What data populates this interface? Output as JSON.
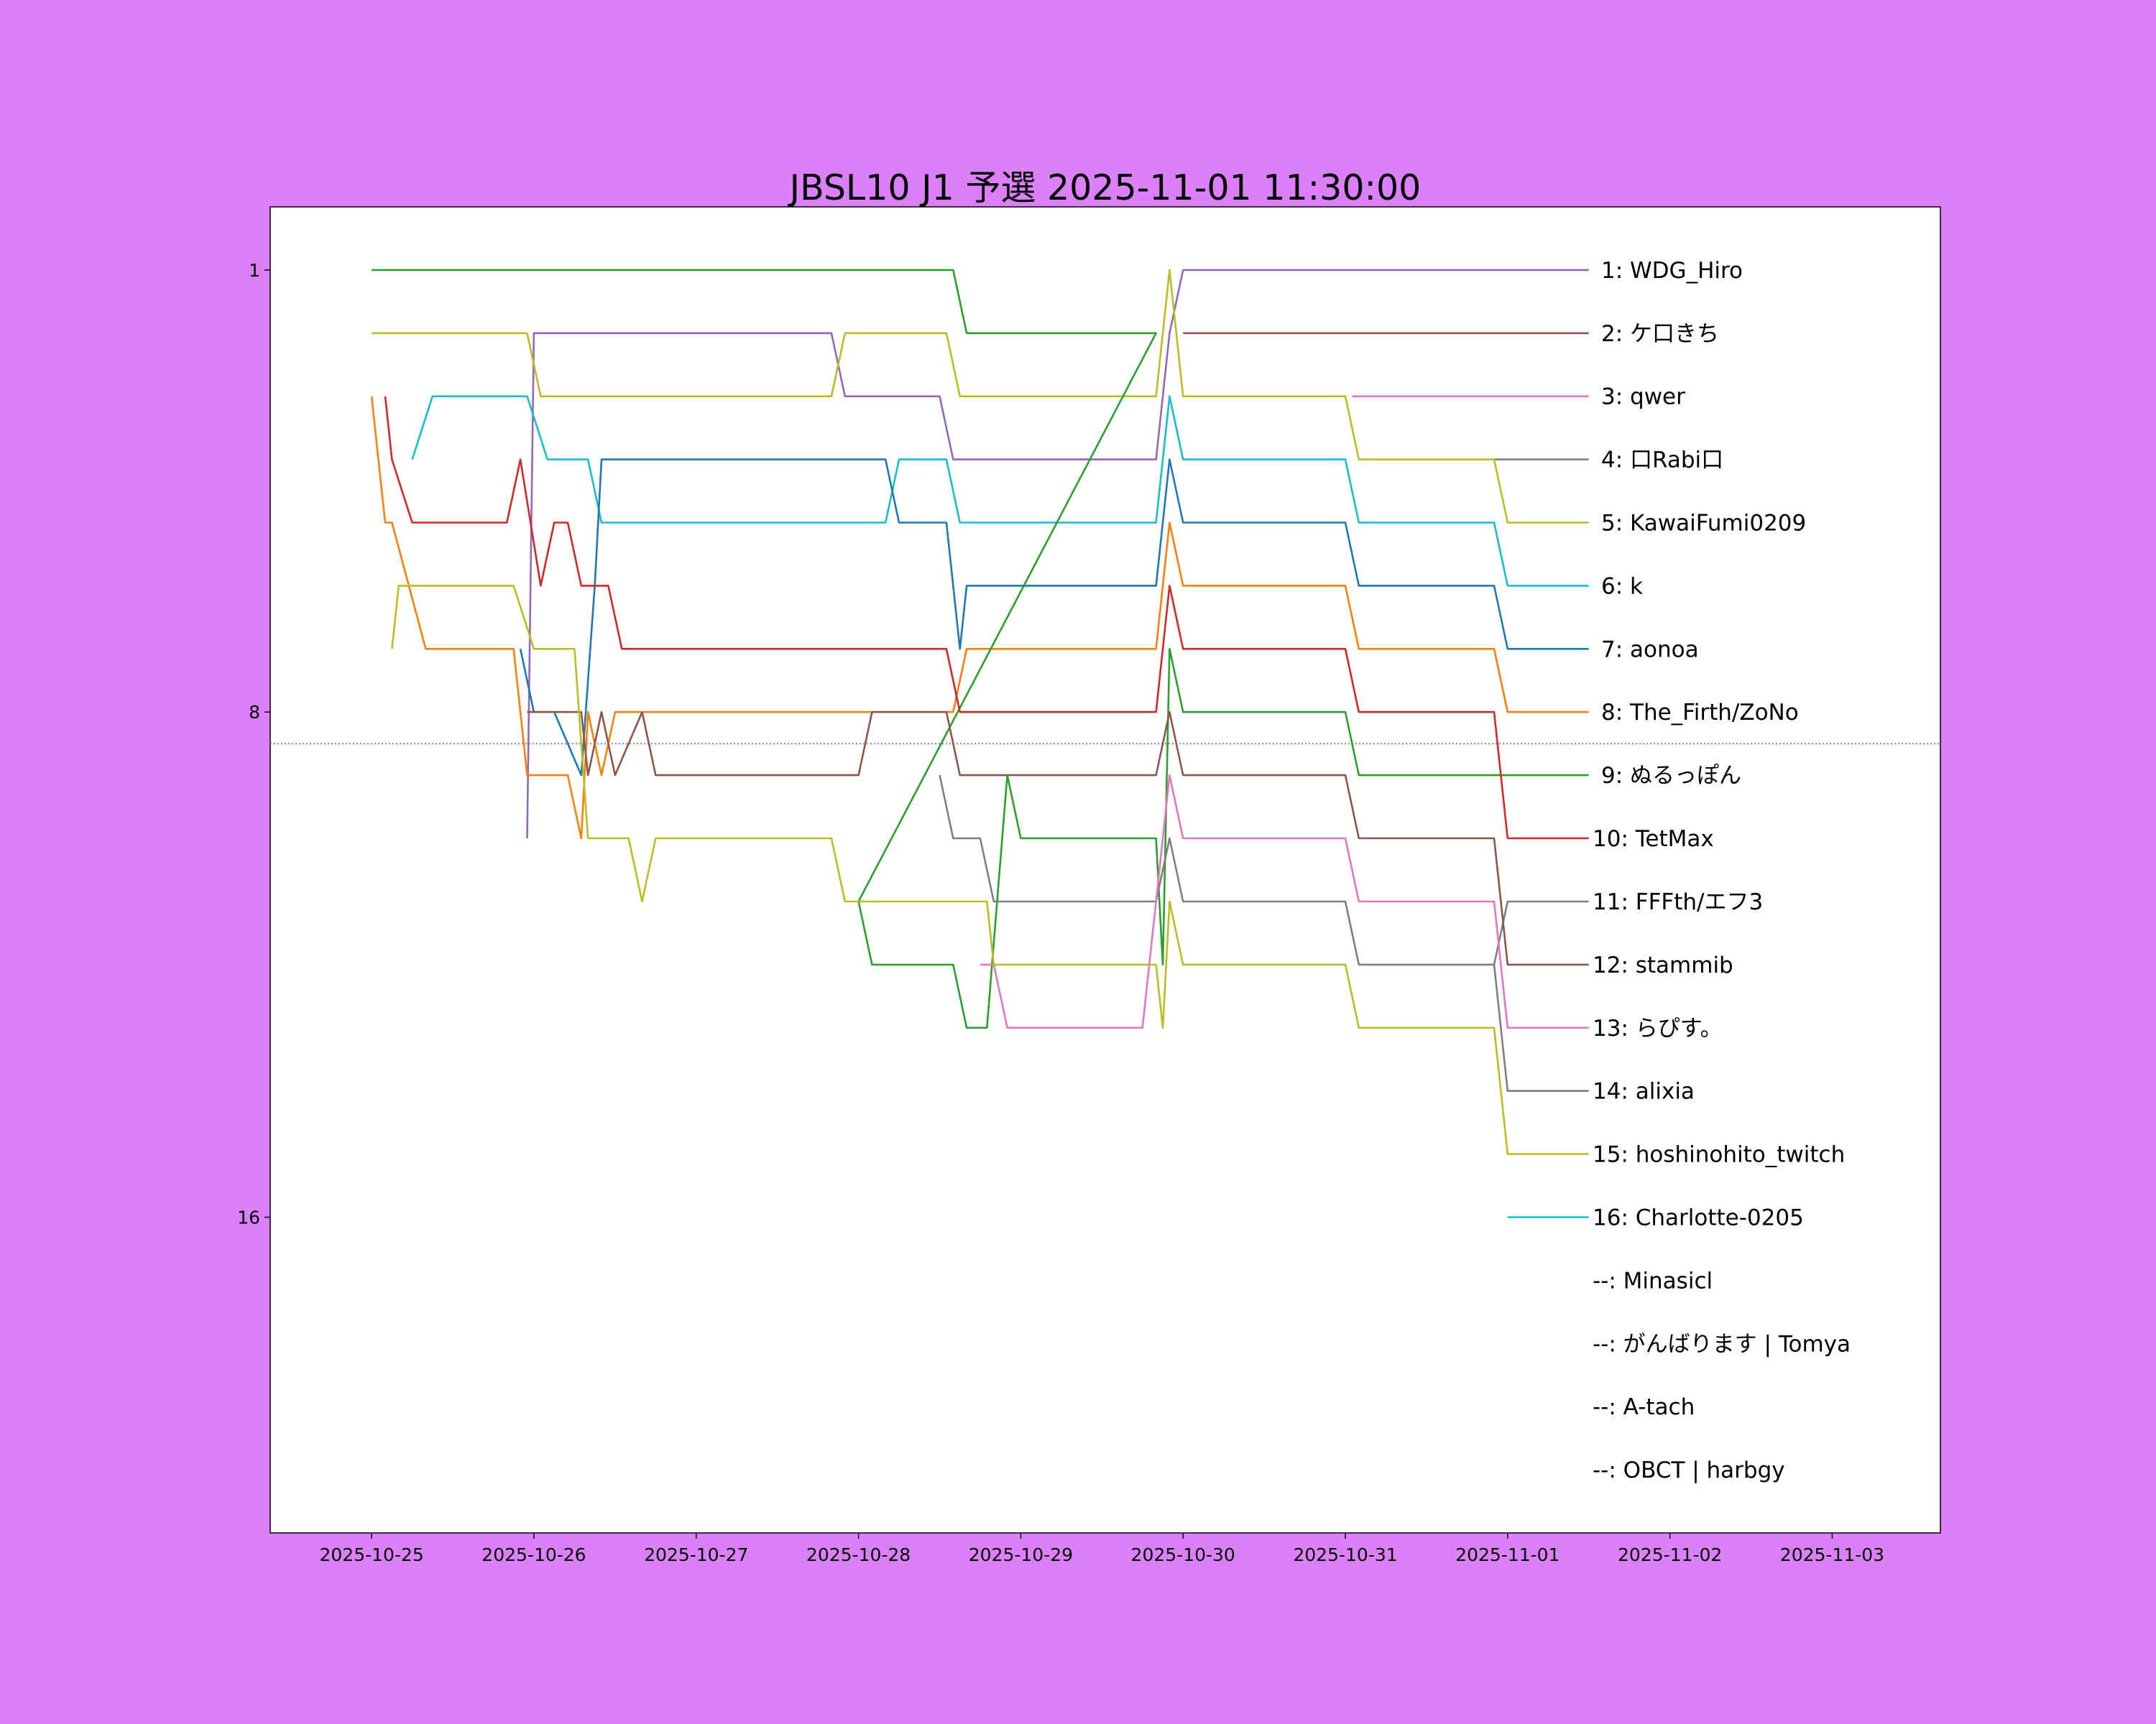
{
  "chart_data": {
    "type": "line",
    "title": "JBSL10 J1 予選 2025-11-01 11:30:00",
    "xlabel": "",
    "ylabel": "",
    "x_ticks": [
      "2025-10-25",
      "2025-10-26",
      "2025-10-27",
      "2025-10-28",
      "2025-10-29",
      "2025-10-30",
      "2025-10-31",
      "2025-11-01",
      "2025-11-02",
      "2025-11-03"
    ],
    "x_range": [
      "2025-10-24 09:00",
      "2025-11-03 16:00"
    ],
    "y_ticks": [
      1,
      8,
      16
    ],
    "y_range": [
      0,
      21
    ],
    "y_inverted": true,
    "cutoff_rank": 8.5,
    "grid": false,
    "legend": "right, labels at line ends",
    "series": [
      {
        "name": "1: WDG_Hiro",
        "color": "#9467bd",
        "points": [
          [
            "2025-10-25 23:00",
            10
          ],
          [
            "2025-10-26 00:00",
            2
          ],
          [
            "2025-10-27 20:00",
            2
          ],
          [
            "2025-10-27 22:00",
            3
          ],
          [
            "2025-10-28 12:00",
            3
          ],
          [
            "2025-10-28 14:00",
            4
          ],
          [
            "2025-10-29 20:00",
            4
          ],
          [
            "2025-10-29 22:00",
            2
          ],
          [
            "2025-10-30 00:00",
            1
          ],
          [
            "2025-11-01 12:00",
            1
          ]
        ]
      },
      {
        "name": "2: ケ口きち",
        "color": "#8c564b",
        "points": [
          [
            "2025-10-30 00:00",
            2
          ],
          [
            "2025-11-01 12:00",
            2
          ]
        ]
      },
      {
        "name": "3: qwer",
        "color": "#e377c2",
        "points": [
          [
            "2025-10-31 01:00",
            3
          ],
          [
            "2025-11-01 12:00",
            3
          ]
        ]
      },
      {
        "name": "4: 口Rabi口",
        "color": "#7f7f7f",
        "points": [
          [
            "2025-10-31 22:00",
            4
          ],
          [
            "2025-11-01 12:00",
            4
          ]
        ]
      },
      {
        "name": "5: KawaiFumi0209",
        "color": "#bcbd22",
        "points": [
          [
            "2025-10-25 00:00",
            2
          ],
          [
            "2025-10-25 23:00",
            2
          ],
          [
            "2025-10-26 01:00",
            3
          ],
          [
            "2025-10-27 20:00",
            3
          ],
          [
            "2025-10-27 22:00",
            2
          ],
          [
            "2025-10-28 13:00",
            2
          ],
          [
            "2025-10-28 15:00",
            3
          ],
          [
            "2025-10-29 20:00",
            3
          ],
          [
            "2025-10-29 22:00",
            1
          ],
          [
            "2025-10-30 00:00",
            3
          ],
          [
            "2025-10-31 00:00",
            3
          ],
          [
            "2025-10-31 02:00",
            4
          ],
          [
            "2025-10-31 22:00",
            4
          ],
          [
            "2025-11-01 00:00",
            5
          ],
          [
            "2025-11-01 12:00",
            5
          ]
        ]
      },
      {
        "name": "6: k",
        "color": "#17becf",
        "points": [
          [
            "2025-10-25 06:00",
            4
          ],
          [
            "2025-10-25 09:00",
            3
          ],
          [
            "2025-10-25 23:00",
            3
          ],
          [
            "2025-10-26 02:00",
            4
          ],
          [
            "2025-10-26 08:00",
            4
          ],
          [
            "2025-10-26 10:00",
            5
          ],
          [
            "2025-10-28 04:00",
            5
          ],
          [
            "2025-10-28 06:00",
            4
          ],
          [
            "2025-10-28 13:00",
            4
          ],
          [
            "2025-10-28 15:00",
            5
          ],
          [
            "2025-10-29 20:00",
            5
          ],
          [
            "2025-10-29 22:00",
            3
          ],
          [
            "2025-10-30 00:00",
            4
          ],
          [
            "2025-10-31 00:00",
            4
          ],
          [
            "2025-10-31 02:00",
            5
          ],
          [
            "2025-10-31 22:00",
            5
          ],
          [
            "2025-11-01 00:00",
            6
          ],
          [
            "2025-11-01 12:00",
            6
          ]
        ]
      },
      {
        "name": "7: aonoa",
        "color": "#1f77b4",
        "points": [
          [
            "2025-10-25 22:00",
            7
          ],
          [
            "2025-10-26 00:00",
            8
          ],
          [
            "2025-10-26 03:00",
            8
          ],
          [
            "2025-10-26 07:00",
            9
          ],
          [
            "2025-10-26 09:00",
            6
          ],
          [
            "2025-10-26 10:00",
            4
          ],
          [
            "2025-10-28 04:00",
            4
          ],
          [
            "2025-10-28 06:00",
            5
          ],
          [
            "2025-10-28 13:00",
            5
          ],
          [
            "2025-10-28 15:00",
            7
          ],
          [
            "2025-10-28 16:00",
            6
          ],
          [
            "2025-10-29 20:00",
            6
          ],
          [
            "2025-10-29 22:00",
            4
          ],
          [
            "2025-10-30 00:00",
            5
          ],
          [
            "2025-10-31 00:00",
            5
          ],
          [
            "2025-10-31 02:00",
            6
          ],
          [
            "2025-10-31 22:00",
            6
          ],
          [
            "2025-11-01 00:00",
            7
          ],
          [
            "2025-11-01 12:00",
            7
          ]
        ]
      },
      {
        "name": "8: The_Firth/ZoNo",
        "color": "#ff7f0e",
        "points": [
          [
            "2025-10-25 00:00",
            3
          ],
          [
            "2025-10-25 01:00",
            4
          ],
          [
            "2025-10-25 02:00",
            5
          ],
          [
            "2025-10-25 03:00",
            5
          ],
          [
            "2025-10-25 08:00",
            7
          ],
          [
            "2025-10-25 21:00",
            7
          ],
          [
            "2025-10-25 23:00",
            9
          ],
          [
            "2025-10-26 05:00",
            9
          ],
          [
            "2025-10-26 07:00",
            10
          ],
          [
            "2025-10-26 08:00",
            8
          ],
          [
            "2025-10-26 10:00",
            9
          ],
          [
            "2025-10-26 12:00",
            8
          ],
          [
            "2025-10-26 16:00",
            8
          ],
          [
            "2025-10-26 18:00",
            8
          ],
          [
            "2025-10-27 00:00",
            8
          ],
          [
            "2025-10-28 14:00",
            8
          ],
          [
            "2025-10-28 16:00",
            7
          ],
          [
            "2025-10-29 20:00",
            7
          ],
          [
            "2025-10-29 22:00",
            5
          ],
          [
            "2025-10-30 00:00",
            6
          ],
          [
            "2025-10-31 00:00",
            6
          ],
          [
            "2025-10-31 02:00",
            7
          ],
          [
            "2025-10-31 22:00",
            7
          ],
          [
            "2025-11-01 00:00",
            8
          ],
          [
            "2025-11-01 12:00",
            8
          ]
        ]
      },
      {
        "name": "9: ぬるっぽん",
        "color": "#2ca02c",
        "points": [
          [
            "2025-10-25 00:00",
            1
          ],
          [
            "2025-10-28 14:00",
            1
          ],
          [
            "2025-10-28 16:00",
            2
          ],
          [
            "2025-10-29 20:00",
            2
          ],
          [
            "2025-10-28 00:00",
            11
          ],
          [
            "2025-10-28 02:00",
            12
          ],
          [
            "2025-10-28 14:00",
            12
          ],
          [
            "2025-10-28 16:00",
            13
          ],
          [
            "2025-10-28 19:00",
            13
          ],
          [
            "2025-10-28 22:00",
            9
          ],
          [
            "2025-10-29 00:00",
            10
          ],
          [
            "2025-10-29 20:00",
            10
          ],
          [
            "2025-10-29 21:00",
            12
          ],
          [
            "2025-10-29 22:00",
            7
          ],
          [
            "2025-10-30 00:00",
            8
          ],
          [
            "2025-10-31 00:00",
            8
          ],
          [
            "2025-10-31 02:00",
            9
          ],
          [
            "2025-10-31 22:00",
            9
          ],
          [
            "2025-11-01 00:00",
            9
          ],
          [
            "2025-11-01 12:00",
            9
          ]
        ]
      },
      {
        "name": "10: TetMax",
        "color": "#d62728",
        "points": [
          [
            "2025-10-25 02:00",
            3
          ],
          [
            "2025-10-25 03:00",
            4
          ],
          [
            "2025-10-25 06:00",
            5
          ],
          [
            "2025-10-25 20:00",
            5
          ],
          [
            "2025-10-25 22:00",
            4
          ],
          [
            "2025-10-26 01:00",
            6
          ],
          [
            "2025-10-26 03:00",
            5
          ],
          [
            "2025-10-26 05:00",
            5
          ],
          [
            "2025-10-26 07:00",
            6
          ],
          [
            "2025-10-26 11:00",
            6
          ],
          [
            "2025-10-26 13:00",
            7
          ],
          [
            "2025-10-27 20:00",
            7
          ],
          [
            "2025-10-28 13:00",
            7
          ],
          [
            "2025-10-28 15:00",
            8
          ],
          [
            "2025-10-29 20:00",
            8
          ],
          [
            "2025-10-29 22:00",
            6
          ],
          [
            "2025-10-30 00:00",
            7
          ],
          [
            "2025-10-31 00:00",
            7
          ],
          [
            "2025-10-31 02:00",
            8
          ],
          [
            "2025-10-31 22:00",
            8
          ],
          [
            "2025-11-01 00:00",
            10
          ],
          [
            "2025-11-01 12:00",
            10
          ]
        ]
      },
      {
        "name": "11: FFFth/エフ3",
        "color": "#7f7f7f",
        "points": [
          [
            "2025-10-28 12:00",
            9
          ],
          [
            "2025-10-28 14:00",
            10
          ],
          [
            "2025-10-28 18:00",
            10
          ],
          [
            "2025-10-28 20:00",
            11
          ],
          [
            "2025-10-29 20:00",
            11
          ],
          [
            "2025-10-29 22:00",
            10
          ],
          [
            "2025-10-30 00:00",
            11
          ],
          [
            "2025-10-31 00:00",
            11
          ],
          [
            "2025-10-31 02:00",
            12
          ],
          [
            "2025-10-31 22:00",
            12
          ],
          [
            "2025-11-01 00:00",
            11
          ],
          [
            "2025-11-01 12:00",
            11
          ]
        ]
      },
      {
        "name": "12: stammib",
        "color": "#8c564b",
        "points": [
          [
            "2025-10-25 23:00",
            8
          ],
          [
            "2025-10-26 07:00",
            8
          ],
          [
            "2025-10-26 08:00",
            9
          ],
          [
            "2025-10-26 10:00",
            8
          ],
          [
            "2025-10-26 12:00",
            9
          ],
          [
            "2025-10-26 16:00",
            8
          ],
          [
            "2025-10-26 18:00",
            9
          ],
          [
            "2025-10-27 00:00",
            9
          ],
          [
            "2025-10-28 00:00",
            9
          ],
          [
            "2025-10-28 02:00",
            8
          ],
          [
            "2025-10-28 13:00",
            8
          ],
          [
            "2025-10-28 15:00",
            9
          ],
          [
            "2025-10-28 19:00",
            9
          ],
          [
            "2025-10-29 20:00",
            9
          ],
          [
            "2025-10-29 22:00",
            8
          ],
          [
            "2025-10-30 00:00",
            9
          ],
          [
            "2025-10-31 00:00",
            9
          ],
          [
            "2025-10-31 02:00",
            10
          ],
          [
            "2025-10-31 22:00",
            10
          ],
          [
            "2025-11-01 00:00",
            12
          ],
          [
            "2025-11-01 12:00",
            12
          ]
        ]
      },
      {
        "name": "13: らぴす。",
        "color": "#e377c2",
        "points": [
          [
            "2025-10-28 18:00",
            12
          ],
          [
            "2025-10-28 20:00",
            12
          ],
          [
            "2025-10-28 22:00",
            13
          ],
          [
            "2025-10-29 18:00",
            13
          ],
          [
            "2025-10-29 20:00",
            11
          ],
          [
            "2025-10-29 22:00",
            9
          ],
          [
            "2025-10-30 00:00",
            10
          ],
          [
            "2025-10-31 00:00",
            10
          ],
          [
            "2025-10-31 02:00",
            11
          ],
          [
            "2025-10-31 22:00",
            11
          ],
          [
            "2025-11-01 00:00",
            13
          ],
          [
            "2025-11-01 12:00",
            13
          ]
        ]
      },
      {
        "name": "14: alixia",
        "color": "#7f7f7f",
        "points": [
          [
            "2025-10-31 22:00",
            12
          ],
          [
            "2025-11-01 00:00",
            14
          ],
          [
            "2025-11-01 12:00",
            14
          ]
        ]
      },
      {
        "name": "15: hoshinohito_twitch",
        "color": "#bcbd22",
        "points": [
          [
            "2025-10-25 03:00",
            7
          ],
          [
            "2025-10-25 04:00",
            6
          ],
          [
            "2025-10-25 21:00",
            6
          ],
          [
            "2025-10-26 00:00",
            7
          ],
          [
            "2025-10-26 06:00",
            7
          ],
          [
            "2025-10-26 08:00",
            10
          ],
          [
            "2025-10-26 14:00",
            10
          ],
          [
            "2025-10-26 16:00",
            11
          ],
          [
            "2025-10-26 18:00",
            10
          ],
          [
            "2025-10-27 20:00",
            10
          ],
          [
            "2025-10-27 22:00",
            11
          ],
          [
            "2025-10-28 19:00",
            11
          ],
          [
            "2025-10-28 20:00",
            12
          ],
          [
            "2025-10-29 20:00",
            12
          ],
          [
            "2025-10-29 21:00",
            13
          ],
          [
            "2025-10-29 22:00",
            11
          ],
          [
            "2025-10-30 00:00",
            12
          ],
          [
            "2025-10-31 00:00",
            12
          ],
          [
            "2025-10-31 02:00",
            13
          ],
          [
            "2025-10-31 22:00",
            13
          ],
          [
            "2025-11-01 00:00",
            15
          ],
          [
            "2025-11-01 12:00",
            15
          ]
        ]
      },
      {
        "name": "16: Charlotte-0205",
        "color": "#17becf",
        "points": [
          [
            "2025-11-01 00:00",
            16
          ],
          [
            "2025-11-01 12:00",
            16
          ]
        ]
      },
      {
        "name": "--: Minasicl",
        "color": "",
        "points": []
      },
      {
        "name": "--: がんばります | Tomya",
        "color": "",
        "points": []
      },
      {
        "name": "--: A-tach",
        "color": "",
        "points": []
      },
      {
        "name": "--: OBCT | harbgy",
        "color": "",
        "points": []
      }
    ]
  }
}
